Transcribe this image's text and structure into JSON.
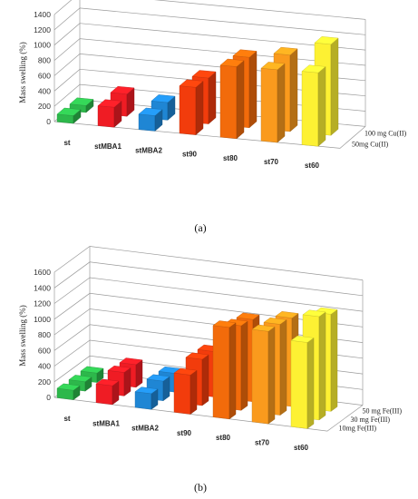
{
  "chart_data": [
    {
      "type": "bar",
      "panel_label": "(a)",
      "ylabel": "Mass swelling (%)",
      "ylim": [
        0,
        1400
      ],
      "yticks": [
        "0",
        "200",
        "400",
        "600",
        "800",
        "1000",
        "1200",
        "1400"
      ],
      "grid": true,
      "categories": [
        "st",
        "stMBA1",
        "stMBA2",
        "st90",
        "st80",
        "st70",
        "st60"
      ],
      "category_colors": [
        "#2db84b",
        "#ef1c24",
        "#1f86d4",
        "#f23c0c",
        "#f26b0b",
        "#fa9a1d",
        "#fdf133"
      ],
      "series": [
        {
          "name": "50mg Cu(II)",
          "values": [
            100,
            260,
            200,
            620,
            940,
            950,
            960
          ]
        },
        {
          "name": "100 mg Cu(II)",
          "values": [
            90,
            290,
            230,
            600,
            920,
            1000,
            1190
          ]
        }
      ]
    },
    {
      "type": "bar",
      "panel_label": "(b)",
      "ylabel": "Mass swelling (%)",
      "ylim": [
        0,
        1600
      ],
      "yticks": [
        "0",
        "200",
        "400",
        "600",
        "800",
        "1000",
        "1200",
        "1400",
        "1600"
      ],
      "grid": true,
      "categories": [
        "st",
        "stMBA1",
        "stMBA2",
        "st90",
        "st80",
        "st70",
        "st60"
      ],
      "category_colors": [
        "#2db84b",
        "#ef1c24",
        "#1f86d4",
        "#f23c0c",
        "#f26b0b",
        "#fa9a1d",
        "#fdf133"
      ],
      "series": [
        {
          "name": "10mg Fe(III)",
          "values": [
            120,
            240,
            200,
            500,
            1170,
            1180,
            1100
          ]
        },
        {
          "name": "30 mg Fe(III)",
          "values": [
            120,
            300,
            250,
            590,
            1080,
            1160,
            1320
          ]
        },
        {
          "name": "50 mg Fe(III)",
          "values": [
            120,
            290,
            240,
            580,
            1050,
            1130,
            1240
          ]
        }
      ]
    }
  ]
}
